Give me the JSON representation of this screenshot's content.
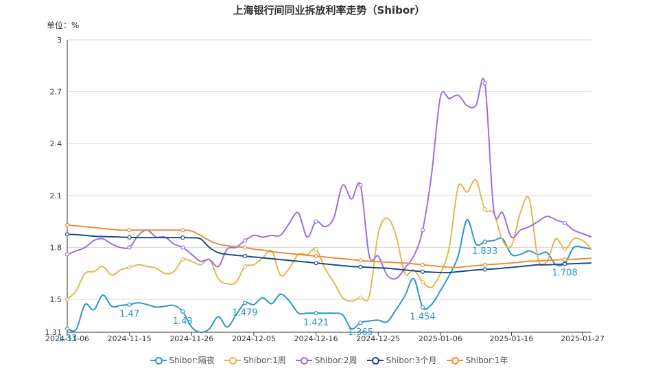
{
  "chart_data": {
    "type": "line",
    "title": "上海银行间同业拆放利率走势（Shibor）",
    "ylabel": "单位：%",
    "ylim": [
      1.31,
      3
    ],
    "y_ticks": [
      "1.31",
      "1.5",
      "1.8",
      "2.1",
      "2.4",
      "2.7",
      "3"
    ],
    "x": [
      "2024-11-06",
      "2024-11-07",
      "2024-11-08",
      "2024-11-11",
      "2024-11-12",
      "2024-11-13",
      "2024-11-14",
      "2024-11-15",
      "2024-11-18",
      "2024-11-19",
      "2024-11-20",
      "2024-11-21",
      "2024-11-22",
      "2024-11-25",
      "2024-11-26",
      "2024-11-27",
      "2024-11-28",
      "2024-11-29",
      "2024-12-02",
      "2024-12-03",
      "2024-12-04",
      "2024-12-05",
      "2024-12-06",
      "2024-12-09",
      "2024-12-10",
      "2024-12-11",
      "2024-12-12",
      "2024-12-13",
      "2024-12-16",
      "2024-12-17",
      "2024-12-18",
      "2024-12-19",
      "2024-12-20",
      "2024-12-23",
      "2024-12-24",
      "2024-12-25",
      "2024-12-26",
      "2024-12-27",
      "2024-12-30",
      "2024-12-31",
      "2025-01-02",
      "2025-01-03",
      "2025-01-06",
      "2025-01-07",
      "2025-01-08",
      "2025-01-09",
      "2025-01-10",
      "2025-01-13",
      "2025-01-14",
      "2025-01-15",
      "2025-01-16",
      "2025-01-17",
      "2025-01-20",
      "2025-01-21",
      "2025-01-22",
      "2025-01-23",
      "2025-01-24",
      "2025-01-26",
      "2025-01-27",
      "2025-01-31"
    ],
    "x_tick_labels": [
      "2024-11-06",
      "2024-11-15",
      "2024-11-26",
      "2024-12-05",
      "2024-12-16",
      "2024-12-25",
      "2025-01-06",
      "2025-01-16",
      "2025-01-27"
    ],
    "series": [
      {
        "name": "Shibor:隔夜",
        "color": "#2a97c9",
        "values": [
          1.33,
          1.326,
          1.47,
          1.44,
          1.525,
          1.46,
          1.465,
          1.47,
          1.48,
          1.47,
          1.455,
          1.46,
          1.465,
          1.43,
          1.34,
          1.31,
          1.33,
          1.4,
          1.34,
          1.41,
          1.479,
          1.47,
          1.51,
          1.475,
          1.53,
          1.49,
          1.422,
          1.42,
          1.421,
          1.42,
          1.42,
          1.41,
          1.33,
          1.365,
          1.375,
          1.38,
          1.37,
          1.44,
          1.52,
          1.62,
          1.454,
          1.47,
          1.55,
          1.64,
          1.75,
          1.96,
          1.82,
          1.833,
          1.84,
          1.85,
          1.76,
          1.76,
          1.78,
          1.76,
          1.77,
          1.7,
          1.708,
          1.8,
          1.8,
          1.79
        ]
      },
      {
        "name": "Shibor:1周",
        "color": "#e5b651",
        "values": [
          1.5,
          1.55,
          1.65,
          1.66,
          1.69,
          1.64,
          1.67,
          1.685,
          1.7,
          1.69,
          1.68,
          1.65,
          1.66,
          1.73,
          1.72,
          1.7,
          1.73,
          1.62,
          1.59,
          1.6,
          1.69,
          1.7,
          1.74,
          1.78,
          1.64,
          1.68,
          1.76,
          1.76,
          1.79,
          1.68,
          1.6,
          1.51,
          1.49,
          1.51,
          1.52,
          1.88,
          1.97,
          1.87,
          1.65,
          1.67,
          1.6,
          1.57,
          1.65,
          1.8,
          2.15,
          2.12,
          2.19,
          2.02,
          2.0,
          1.84,
          1.81,
          2.0,
          2.08,
          1.73,
          1.72,
          1.85,
          1.79,
          1.85,
          1.84,
          1.79
        ]
      },
      {
        "name": "Shibor:2周",
        "color": "#9d6ee2",
        "values": [
          1.76,
          1.78,
          1.8,
          1.84,
          1.85,
          1.82,
          1.8,
          1.8,
          1.87,
          1.9,
          1.86,
          1.86,
          1.82,
          1.8,
          1.76,
          1.72,
          1.73,
          1.69,
          1.79,
          1.8,
          1.84,
          1.87,
          1.86,
          1.87,
          1.87,
          1.94,
          2.0,
          1.86,
          1.95,
          1.92,
          1.97,
          2.16,
          2.08,
          2.16,
          1.75,
          1.75,
          1.64,
          1.62,
          1.68,
          1.75,
          1.9,
          2.22,
          2.67,
          2.66,
          2.68,
          2.62,
          2.62,
          2.75,
          2.02,
          2.0,
          1.86,
          1.9,
          1.92,
          1.95,
          1.98,
          1.96,
          1.94,
          1.9,
          1.88,
          1.86
        ]
      },
      {
        "name": "Shibor:3个月",
        "color": "#1b4a84",
        "values": [
          1.876,
          1.874,
          1.87,
          1.865,
          1.863,
          1.862,
          1.86,
          1.858,
          1.857,
          1.857,
          1.857,
          1.857,
          1.857,
          1.857,
          1.856,
          1.85,
          1.8,
          1.77,
          1.76,
          1.755,
          1.75,
          1.745,
          1.74,
          1.735,
          1.73,
          1.725,
          1.72,
          1.715,
          1.71,
          1.705,
          1.7,
          1.695,
          1.69,
          1.688,
          1.685,
          1.682,
          1.68,
          1.675,
          1.67,
          1.665,
          1.66,
          1.657,
          1.655,
          1.655,
          1.66,
          1.665,
          1.67,
          1.673,
          1.676,
          1.68,
          1.685,
          1.69,
          1.695,
          1.7,
          1.7,
          1.702,
          1.704,
          1.706,
          1.708,
          1.71
        ]
      },
      {
        "name": "Shibor:1年",
        "color": "#ef8c3a",
        "values": [
          1.93,
          1.925,
          1.92,
          1.915,
          1.91,
          1.905,
          1.9,
          1.9,
          1.9,
          1.9,
          1.9,
          1.9,
          1.9,
          1.9,
          1.895,
          1.87,
          1.84,
          1.82,
          1.81,
          1.805,
          1.8,
          1.79,
          1.785,
          1.775,
          1.77,
          1.765,
          1.76,
          1.755,
          1.75,
          1.745,
          1.74,
          1.735,
          1.73,
          1.725,
          1.72,
          1.718,
          1.715,
          1.712,
          1.71,
          1.705,
          1.7,
          1.695,
          1.69,
          1.685,
          1.685,
          1.69,
          1.695,
          1.7,
          1.703,
          1.706,
          1.71,
          1.715,
          1.72,
          1.722,
          1.725,
          1.728,
          1.73,
          1.732,
          1.735,
          1.738
        ]
      }
    ],
    "annotations": [
      {
        "series": 0,
        "index": 0,
        "label": "1.33"
      },
      {
        "series": 0,
        "index": 7,
        "label": "1.47"
      },
      {
        "series": 0,
        "index": 13,
        "label": "1.43"
      },
      {
        "series": 0,
        "index": 20,
        "label": "1.479"
      },
      {
        "series": 0,
        "index": 28,
        "label": "1.421"
      },
      {
        "series": 0,
        "index": 33,
        "label": "1.365"
      },
      {
        "series": 0,
        "index": 40,
        "label": "1.454"
      },
      {
        "series": 0,
        "index": 47,
        "label": "1.833"
      },
      {
        "series": 0,
        "index": 56,
        "label": "1.708"
      }
    ],
    "grid": true,
    "legend_position": "bottom"
  }
}
